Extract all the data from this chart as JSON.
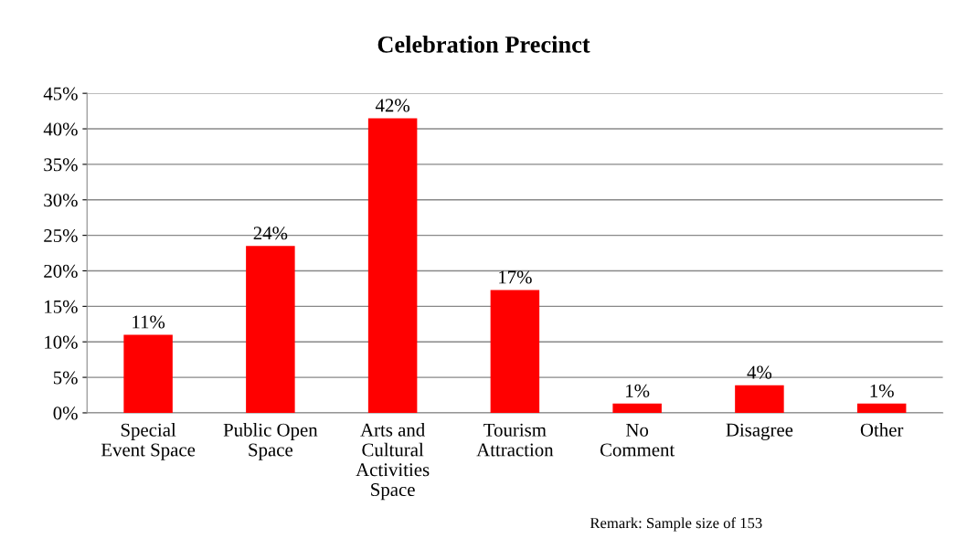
{
  "chart_data": {
    "type": "bar",
    "title": "Celebration Precinct",
    "categories": [
      "Special\nEvent Space",
      "Public Open\nSpace",
      "Arts and\nCultural\nActivities\nSpace",
      "Tourism\nAttraction",
      "No\nComment",
      "Disagree",
      "Other"
    ],
    "values": [
      11,
      23.5,
      41.5,
      17.3,
      1.3,
      3.9,
      1.3
    ],
    "value_labels": [
      "11%",
      "24%",
      "42%",
      "17%",
      "1%",
      "4%",
      "1%"
    ],
    "color": "#ff0000",
    "ylim": [
      0,
      45
    ],
    "yticks": [
      {
        "value": 0,
        "label": "0%"
      },
      {
        "value": 5,
        "label": "5%"
      },
      {
        "value": 10,
        "label": "10%"
      },
      {
        "value": 15,
        "label": "15%"
      },
      {
        "value": 20,
        "label": "20%"
      },
      {
        "value": 25,
        "label": "25%"
      },
      {
        "value": 30,
        "label": "30%"
      },
      {
        "value": 35,
        "label": "35%"
      },
      {
        "value": 40,
        "label": "40%"
      },
      {
        "value": 45,
        "label": "45%"
      }
    ],
    "grid": "y",
    "legend": false,
    "annotations": [
      "Remark: Sample size of 153"
    ]
  }
}
